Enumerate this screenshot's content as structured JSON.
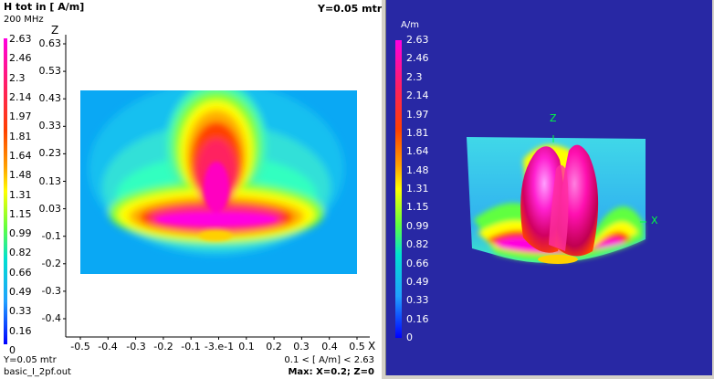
{
  "left_view": {
    "title": "H tot in [ A/m]",
    "frequency": "200 MHz",
    "slice_label": "Y=0.05 mtr",
    "footer_slice": "Y=0.05 mtr",
    "filename": "basic_I_2pf.out",
    "range_text": "0.1 < [ A/m] < 2.63",
    "max_text": "Max: X=0.2; Z=0",
    "z_axis_label": "Z",
    "x_axis_label": "X",
    "colorbar_ticks": [
      "2.63",
      "2.46",
      "2.3",
      "2.14",
      "1.97",
      "1.81",
      "1.64",
      "1.48",
      "1.31",
      "1.15",
      "0.99",
      "0.82",
      "0.66",
      "0.49",
      "0.33",
      "0.16",
      "0"
    ],
    "z_ticks": [
      "0.63",
      "0.53",
      "0.43",
      "0.33",
      "0.23",
      "0.13",
      "0.03",
      "-0.1",
      "-0.2",
      "-0.3",
      "-0.4"
    ],
    "x_ticks": [
      "-0.5",
      "-0.4",
      "-0.3",
      "-0.2",
      "-0.1",
      "-3.e-1",
      "0.1",
      "0.2",
      "0.3",
      "0.4",
      "0.5"
    ]
  },
  "right_view": {
    "unit_label": "A/m",
    "colorbar_ticks": [
      "2.63",
      "2.46",
      "2.3",
      "2.14",
      "1.97",
      "1.81",
      "1.64",
      "1.48",
      "1.31",
      "1.15",
      "0.99",
      "0.82",
      "0.66",
      "0.49",
      "0.33",
      "0.16",
      "0"
    ],
    "z_axis_label": "Z",
    "x_axis_label": "X"
  },
  "colors": {
    "scale_max": "#ff00e0",
    "scale_mid": "#ffff00",
    "scale_low": "#00e0d0",
    "scale_min": "#0000ff",
    "background_3d": "#2828a4",
    "axis_green": "#00ff40"
  }
}
